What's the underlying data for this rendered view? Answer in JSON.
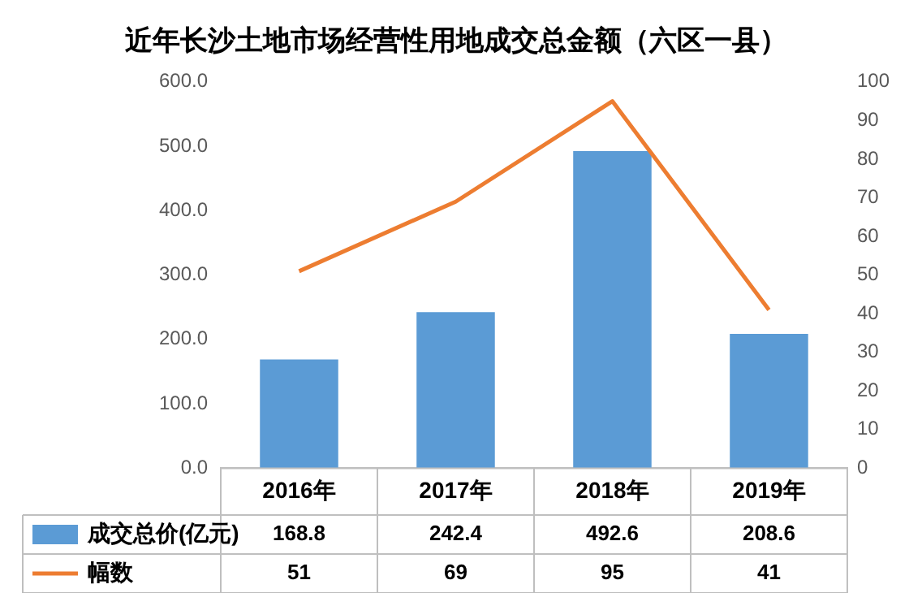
{
  "chart_data": {
    "type": "bar",
    "title": "近年长沙土地市场经营性用地成交总金额（六区一县）",
    "categories": [
      "2016年",
      "2017年",
      "2018年",
      "2019年"
    ],
    "series": [
      {
        "name": "成交总价(亿元)",
        "color": "#5b9bd5",
        "values": [
          168.8,
          242.4,
          492.6,
          208.6
        ]
      },
      {
        "name": "幅数",
        "type": "line",
        "axis": "y2",
        "color": "#ed7d31",
        "values": [
          51,
          69,
          95,
          41
        ]
      }
    ],
    "ylim": [
      0,
      600
    ],
    "yticks": [
      {
        "value": 0,
        "label": "0.0"
      },
      {
        "value": 100,
        "label": "100.0"
      },
      {
        "value": 200,
        "label": "200.0"
      },
      {
        "value": 300,
        "label": "300.0"
      },
      {
        "value": 400,
        "label": "400.0"
      },
      {
        "value": 500,
        "label": "500.0"
      },
      {
        "value": 600,
        "label": "600.0"
      }
    ],
    "y2lim": [
      0,
      100
    ],
    "y2ticks": [
      0,
      10,
      20,
      30,
      40,
      50,
      60,
      70,
      80,
      90,
      100
    ],
    "marker": "none",
    "line_style": "solid",
    "legend": "bottom",
    "data_labels": true
  }
}
